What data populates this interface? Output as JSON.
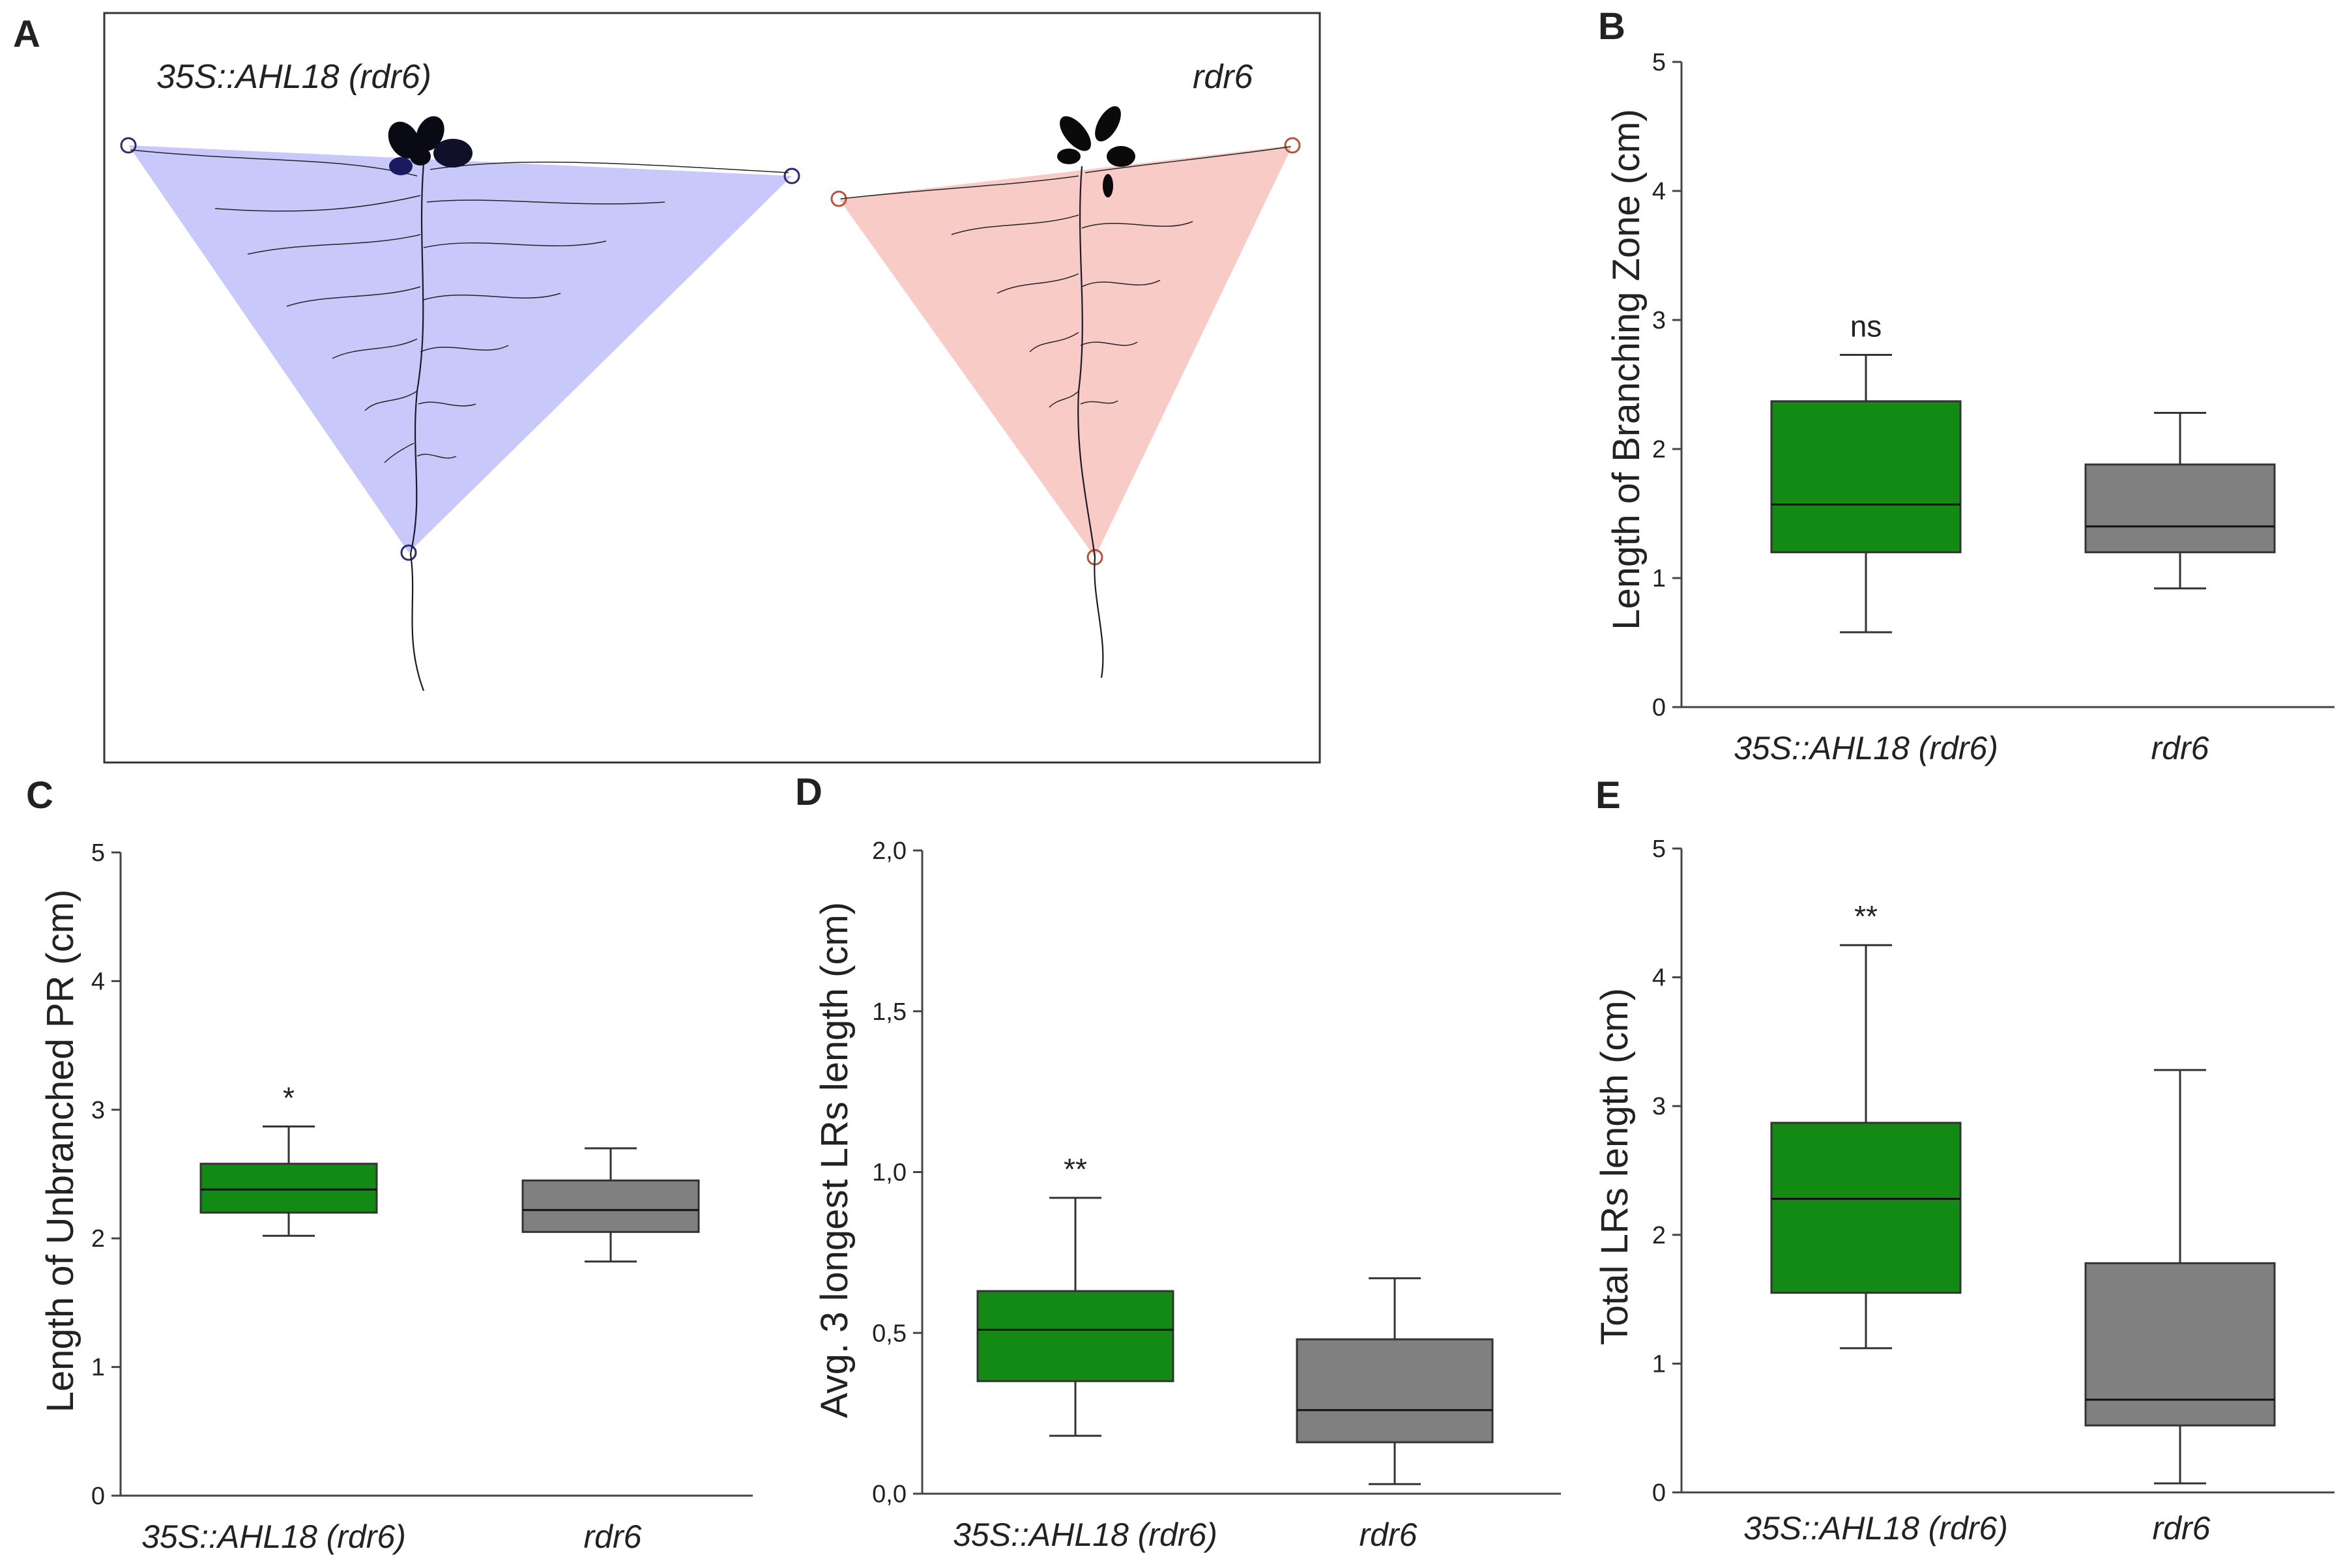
{
  "panels": {
    "a": {
      "letter": "A",
      "label_left": "35S::AHL18 (rdr6)",
      "label_right": "rdr6"
    },
    "b": {
      "letter": "B"
    },
    "c": {
      "letter": "C"
    },
    "d": {
      "letter": "D"
    },
    "e": {
      "letter": "E"
    }
  },
  "colors": {
    "green": "#138a13",
    "gray": "#808080",
    "tri_blue": "#c8c8fa",
    "tri_pink": "#f9cbc6"
  },
  "chart_data": [
    {
      "id": "B",
      "type": "box",
      "ylabel": "Length of Branching Zone (cm)",
      "ylim": [
        0,
        5
      ],
      "yticks": [
        0,
        1,
        2,
        3,
        4,
        5
      ],
      "ytick_labels": [
        "0",
        "1",
        "2",
        "3",
        "4",
        "5"
      ],
      "categories": [
        "35S::AHL18 (rdr6)",
        "rdr6"
      ],
      "boxes": [
        {
          "name": "35S::AHL18 (rdr6)",
          "min": 0.58,
          "q1": 1.2,
          "median": 1.57,
          "q3": 2.37,
          "max": 2.73,
          "color": "#138a13",
          "annotation": "ns"
        },
        {
          "name": "rdr6",
          "min": 0.92,
          "q1": 1.2,
          "median": 1.4,
          "q3": 1.88,
          "max": 2.28,
          "color": "#808080",
          "annotation": ""
        }
      ]
    },
    {
      "id": "C",
      "type": "box",
      "ylabel": "Length of Unbranched PR (cm)",
      "ylim": [
        0,
        5
      ],
      "yticks": [
        0,
        1,
        2,
        3,
        4,
        5
      ],
      "ytick_labels": [
        "0",
        "1",
        "2",
        "3",
        "4",
        "5"
      ],
      "categories": [
        "35S::AHL18 (rdr6)",
        "rdr6"
      ],
      "boxes": [
        {
          "name": "35S::AHL18 (rdr6)",
          "min": 2.02,
          "q1": 2.2,
          "median": 2.38,
          "q3": 2.58,
          "max": 2.87,
          "color": "#138a13",
          "annotation": "*"
        },
        {
          "name": "rdr6",
          "min": 1.82,
          "q1": 2.05,
          "median": 2.22,
          "q3": 2.45,
          "max": 2.7,
          "color": "#808080",
          "annotation": ""
        }
      ]
    },
    {
      "id": "D",
      "type": "box",
      "ylabel": "Avg. 3 longest LRs length (cm)",
      "ylim": [
        0,
        2
      ],
      "yticks": [
        0,
        0.5,
        1,
        1.5,
        2
      ],
      "ytick_labels": [
        "0,0",
        "0,5",
        "1,0",
        "1,5",
        "2,0"
      ],
      "categories": [
        "35S::AHL18 (rdr6)",
        "rdr6"
      ],
      "boxes": [
        {
          "name": "35S::AHL18 (rdr6)",
          "min": 0.18,
          "q1": 0.35,
          "median": 0.51,
          "q3": 0.63,
          "max": 0.92,
          "color": "#138a13",
          "annotation": "**"
        },
        {
          "name": "rdr6",
          "min": 0.03,
          "q1": 0.16,
          "median": 0.26,
          "q3": 0.48,
          "max": 0.67,
          "color": "#808080",
          "annotation": ""
        }
      ]
    },
    {
      "id": "E",
      "type": "box",
      "ylabel": "Total LRs length (cm)",
      "ylim": [
        0,
        5
      ],
      "yticks": [
        0,
        1,
        2,
        3,
        4,
        5
      ],
      "ytick_labels": [
        "0",
        "1",
        "2",
        "3",
        "4",
        "5"
      ],
      "categories": [
        "35S::AHL18 (rdr6)",
        "rdr6"
      ],
      "boxes": [
        {
          "name": "35S::AHL18 (rdr6)",
          "min": 1.12,
          "q1": 1.55,
          "median": 2.28,
          "q3": 2.87,
          "max": 4.25,
          "color": "#138a13",
          "annotation": "**"
        },
        {
          "name": "rdr6",
          "min": 0.07,
          "q1": 0.52,
          "median": 0.72,
          "q3": 1.78,
          "max": 3.28,
          "color": "#808080",
          "annotation": ""
        }
      ]
    }
  ]
}
